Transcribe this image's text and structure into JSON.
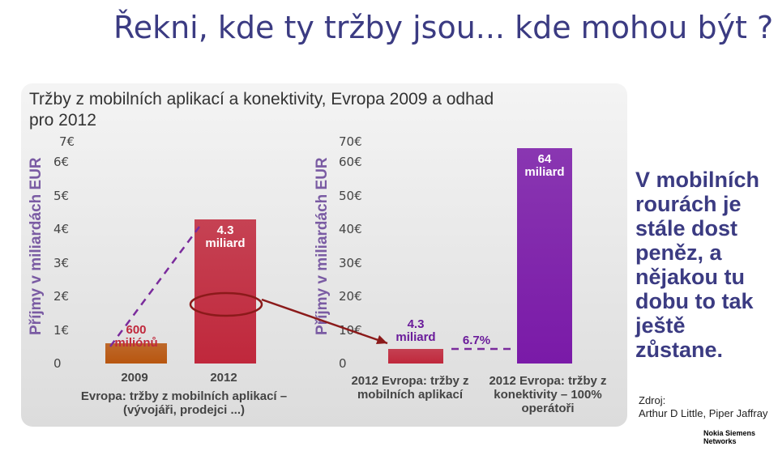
{
  "page_title": "Řekni, kde ty tržby jsou... kde mohou být ?",
  "subtitle": "Tržby z mobilních aplikací a konektivity, Evropa 2009 a odhad pro 2012",
  "comment": "V mobilních rourách je stále dost peněz, a nějakou tu dobu to tak ještě zůstane.",
  "source_label": "Zdroj:",
  "source_text": "Arthur D Little, Piper Jaffray",
  "logo_line1": "Nokia Siemens",
  "logo_line2": "Networks",
  "chart_data": [
    {
      "type": "bar",
      "ylabel": "Příjmy v miliardách EUR",
      "yticks": [
        "0",
        "1€",
        "2€",
        "3€",
        "4€",
        "5€",
        "6€",
        "7€"
      ],
      "ylim": [
        0,
        7
      ],
      "categories": [
        "2009",
        "2012"
      ],
      "values": [
        0.6,
        4.3
      ],
      "data_labels": [
        "600 miliónů",
        "4.3 miliard"
      ],
      "xlabel": "Evropa: tržby z mobilních aplikací – (vývojáři, prodejci ...)",
      "colors": [
        "#b8560f",
        "#c0283c"
      ]
    },
    {
      "type": "bar",
      "ylabel": "Příjmy v miliardách EUR",
      "yticks": [
        "0",
        "10€",
        "20€",
        "30€",
        "40€",
        "50€",
        "60€",
        "70€"
      ],
      "ylim": [
        0,
        70
      ],
      "categories": [
        "2012 Evropa: tržby z mobilních aplikací",
        "2012 Evropa: tržby z konektivity – 100% operátoři"
      ],
      "values": [
        4.3,
        64
      ],
      "data_labels": [
        "4.3 miliard",
        "64 miliard"
      ],
      "annotation": "6.7%",
      "colors": [
        "#c0283c",
        "#7a1aa8"
      ]
    }
  ]
}
